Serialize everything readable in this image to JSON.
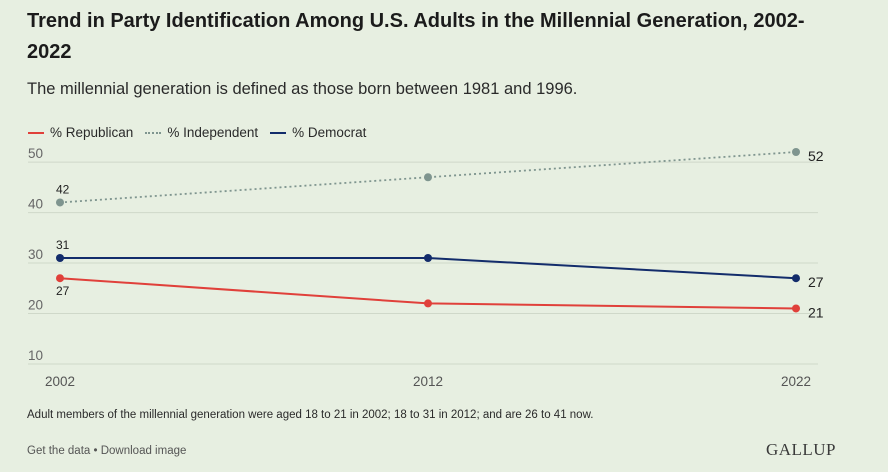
{
  "header": {
    "title": "Trend in Party Identification Among U.S. Adults in the Millennial Generation, 2002-2022",
    "subtitle": "The millennial generation is defined as those born between 1981 and 1996."
  },
  "legend": [
    {
      "label": "% Republican",
      "color": "#e0403a",
      "style": "solid"
    },
    {
      "label": "% Independent",
      "color": "#7f958f",
      "style": "dotted"
    },
    {
      "label": "% Democrat",
      "color": "#132c6b",
      "style": "solid"
    }
  ],
  "chart_data": {
    "type": "line",
    "x": [
      2002,
      2012,
      2022
    ],
    "series": [
      {
        "name": "% Republican",
        "values": [
          27,
          22,
          21
        ],
        "color": "#e0403a",
        "style": "solid",
        "labels": [
          "27",
          null,
          "21"
        ]
      },
      {
        "name": "% Independent",
        "values": [
          42,
          47,
          52
        ],
        "color": "#7f958f",
        "style": "dotted",
        "labels": [
          "42",
          null,
          "52"
        ]
      },
      {
        "name": "% Democrat",
        "values": [
          31,
          31,
          27
        ],
        "color": "#132c6b",
        "style": "solid",
        "labels": [
          "31",
          null,
          "27"
        ]
      }
    ],
    "yticks": [
      10,
      20,
      30,
      40,
      50
    ],
    "ylim": [
      10,
      52
    ],
    "xticks": [
      "2002",
      "2012",
      "2022"
    ],
    "grid": true,
    "legend_position": "top-left"
  },
  "footnote": "Adult members of the millennial generation were aged 18 to 21 in 2002; 18 to 31 in 2012; and are 26 to 41 now.",
  "footer": {
    "get_data": "Get the data",
    "separator": " • ",
    "download": "Download image",
    "brand": "GALLUP"
  }
}
